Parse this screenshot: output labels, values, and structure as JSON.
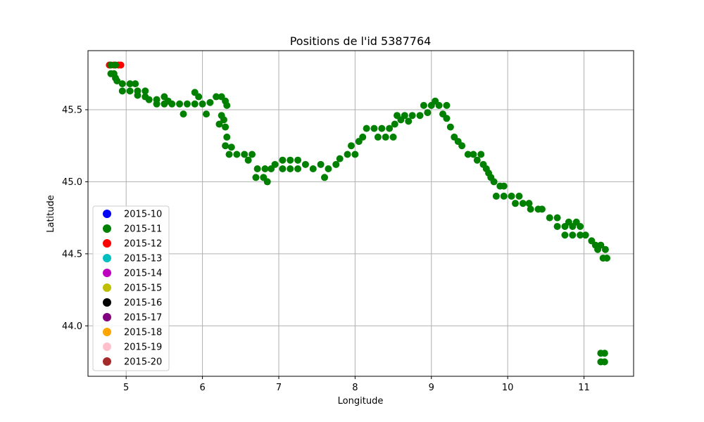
{
  "chart_data": {
    "type": "scatter",
    "title": "Positions de l'id 5387764",
    "xlabel": "Longitude",
    "ylabel": "Latitude",
    "xlim": [
      4.5,
      11.65
    ],
    "ylim": [
      43.65,
      45.91
    ],
    "xticks": [
      5,
      6,
      7,
      8,
      9,
      10,
      11
    ],
    "yticks": [
      44.0,
      44.5,
      45.0,
      45.5
    ],
    "xtick_labels": [
      "5",
      "6",
      "7",
      "8",
      "9",
      "10",
      "11"
    ],
    "ytick_labels": [
      "44.0",
      "44.5",
      "45.0",
      "45.5"
    ],
    "grid": true,
    "legend_position": "lower-left",
    "legend": [
      {
        "label": "2015-10",
        "color": "#0000ff"
      },
      {
        "label": "2015-11",
        "color": "#008000"
      },
      {
        "label": "2015-12",
        "color": "#ff0000"
      },
      {
        "label": "2015-13",
        "color": "#00bfbf"
      },
      {
        "label": "2015-14",
        "color": "#bf00bf"
      },
      {
        "label": "2015-15",
        "color": "#bfbf00"
      },
      {
        "label": "2015-16",
        "color": "#000000"
      },
      {
        "label": "2015-17",
        "color": "#800080"
      },
      {
        "label": "2015-18",
        "color": "#ffa500"
      },
      {
        "label": "2015-19",
        "color": "#ffc0cb"
      },
      {
        "label": "2015-20",
        "color": "#a52a2a"
      }
    ],
    "series": [
      {
        "name": "2015-12",
        "color": "#ff0000",
        "points": [
          [
            4.78,
            45.81
          ],
          [
            4.84,
            45.81
          ],
          [
            4.9,
            45.81
          ],
          [
            4.93,
            45.81
          ]
        ]
      },
      {
        "name": "2015-11",
        "color": "#008000",
        "points": [
          [
            4.8,
            45.81
          ],
          [
            4.86,
            45.81
          ],
          [
            4.8,
            45.75
          ],
          [
            4.84,
            45.75
          ],
          [
            4.86,
            45.72
          ],
          [
            4.88,
            45.7
          ],
          [
            4.95,
            45.68
          ],
          [
            5.05,
            45.68
          ],
          [
            5.12,
            45.68
          ],
          [
            4.95,
            45.63
          ],
          [
            5.05,
            45.63
          ],
          [
            5.15,
            45.63
          ],
          [
            5.25,
            45.63
          ],
          [
            5.15,
            45.6
          ],
          [
            5.25,
            45.59
          ],
          [
            5.3,
            45.57
          ],
          [
            5.4,
            45.57
          ],
          [
            5.5,
            45.59
          ],
          [
            5.55,
            45.56
          ],
          [
            5.4,
            45.54
          ],
          [
            5.5,
            45.54
          ],
          [
            5.6,
            45.54
          ],
          [
            5.7,
            45.54
          ],
          [
            5.8,
            45.54
          ],
          [
            5.9,
            45.54
          ],
          [
            6.0,
            45.54
          ],
          [
            5.75,
            45.47
          ],
          [
            5.9,
            45.62
          ],
          [
            5.95,
            45.59
          ],
          [
            6.05,
            45.47
          ],
          [
            6.1,
            45.55
          ],
          [
            6.18,
            45.59
          ],
          [
            6.25,
            45.59
          ],
          [
            6.3,
            45.56
          ],
          [
            6.32,
            45.53
          ],
          [
            6.25,
            45.46
          ],
          [
            6.28,
            45.43
          ],
          [
            6.22,
            45.4
          ],
          [
            6.3,
            45.38
          ],
          [
            6.32,
            45.31
          ],
          [
            6.3,
            45.25
          ],
          [
            6.38,
            45.24
          ],
          [
            6.35,
            45.19
          ],
          [
            6.45,
            45.19
          ],
          [
            6.55,
            45.19
          ],
          [
            6.65,
            45.19
          ],
          [
            6.6,
            45.15
          ],
          [
            6.72,
            45.09
          ],
          [
            6.82,
            45.09
          ],
          [
            6.7,
            45.03
          ],
          [
            6.8,
            45.03
          ],
          [
            6.85,
            45.0
          ],
          [
            6.9,
            45.09
          ],
          [
            6.95,
            45.12
          ],
          [
            7.05,
            45.15
          ],
          [
            7.15,
            45.15
          ],
          [
            7.25,
            45.15
          ],
          [
            7.05,
            45.09
          ],
          [
            7.15,
            45.09
          ],
          [
            7.25,
            45.09
          ],
          [
            7.35,
            45.12
          ],
          [
            7.45,
            45.09
          ],
          [
            7.55,
            45.12
          ],
          [
            7.65,
            45.09
          ],
          [
            7.6,
            45.03
          ],
          [
            7.75,
            45.12
          ],
          [
            7.8,
            45.16
          ],
          [
            7.9,
            45.19
          ],
          [
            8.0,
            45.19
          ],
          [
            7.95,
            45.25
          ],
          [
            8.05,
            45.28
          ],
          [
            8.1,
            45.31
          ],
          [
            8.15,
            45.37
          ],
          [
            8.25,
            45.37
          ],
          [
            8.35,
            45.37
          ],
          [
            8.45,
            45.37
          ],
          [
            8.3,
            45.31
          ],
          [
            8.4,
            45.31
          ],
          [
            8.5,
            45.31
          ],
          [
            8.52,
            45.4
          ],
          [
            8.6,
            45.43
          ],
          [
            8.55,
            45.46
          ],
          [
            8.65,
            45.46
          ],
          [
            8.75,
            45.46
          ],
          [
            8.85,
            45.46
          ],
          [
            8.95,
            45.48
          ],
          [
            8.7,
            45.42
          ],
          [
            8.9,
            45.53
          ],
          [
            9.0,
            45.53
          ],
          [
            9.1,
            45.53
          ],
          [
            9.2,
            45.53
          ],
          [
            9.05,
            45.56
          ],
          [
            9.15,
            45.47
          ],
          [
            9.2,
            45.44
          ],
          [
            9.25,
            45.38
          ],
          [
            9.3,
            45.31
          ],
          [
            9.35,
            45.28
          ],
          [
            9.4,
            45.25
          ],
          [
            9.48,
            45.19
          ],
          [
            9.55,
            45.19
          ],
          [
            9.6,
            45.15
          ],
          [
            9.65,
            45.19
          ],
          [
            9.68,
            45.12
          ],
          [
            9.72,
            45.09
          ],
          [
            9.75,
            45.06
          ],
          [
            9.78,
            45.03
          ],
          [
            9.82,
            45.0
          ],
          [
            9.9,
            44.97
          ],
          [
            9.95,
            44.97
          ],
          [
            9.85,
            44.9
          ],
          [
            9.95,
            44.9
          ],
          [
            10.05,
            44.9
          ],
          [
            10.15,
            44.9
          ],
          [
            10.1,
            44.85
          ],
          [
            10.2,
            44.85
          ],
          [
            10.28,
            44.85
          ],
          [
            10.3,
            44.81
          ],
          [
            10.4,
            44.81
          ],
          [
            10.45,
            44.81
          ],
          [
            10.55,
            44.75
          ],
          [
            10.65,
            44.75
          ],
          [
            10.65,
            44.69
          ],
          [
            10.75,
            44.69
          ],
          [
            10.85,
            44.69
          ],
          [
            10.95,
            44.69
          ],
          [
            10.8,
            44.72
          ],
          [
            10.9,
            44.72
          ],
          [
            10.75,
            44.63
          ],
          [
            10.85,
            44.63
          ],
          [
            10.95,
            44.63
          ],
          [
            11.02,
            44.63
          ],
          [
            11.1,
            44.59
          ],
          [
            11.15,
            44.56
          ],
          [
            11.22,
            44.56
          ],
          [
            11.18,
            44.53
          ],
          [
            11.28,
            44.53
          ],
          [
            11.25,
            44.47
          ],
          [
            11.3,
            44.47
          ],
          [
            11.22,
            43.81
          ],
          [
            11.27,
            43.81
          ],
          [
            11.22,
            43.75
          ],
          [
            11.27,
            43.75
          ]
        ]
      }
    ]
  }
}
